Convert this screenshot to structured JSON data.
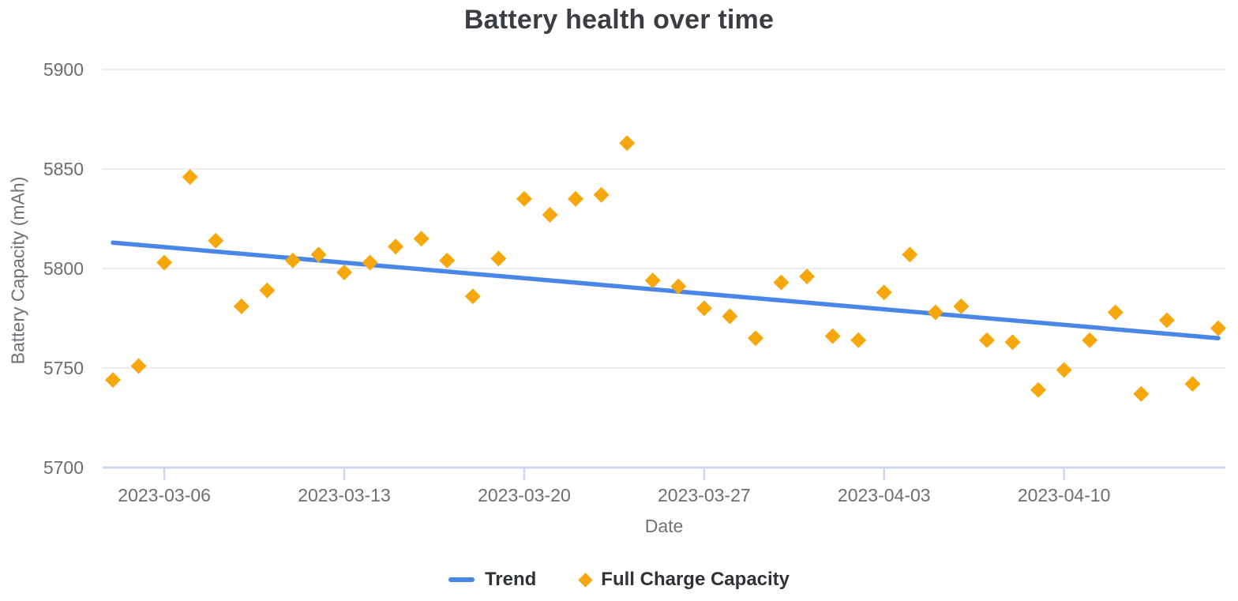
{
  "chart": {
    "title": "Battery health over time",
    "x_axis_title": "Date",
    "y_axis_title": "Battery Capacity (mAh)",
    "legend": [
      {
        "label": "Trend",
        "swatch": "line",
        "color": "#4A86E8"
      },
      {
        "label": "Full Charge Capacity",
        "swatch": "diamond",
        "color": "#F5A70C"
      }
    ]
  },
  "chart_data": {
    "type": "scatter",
    "title": "Battery health over time",
    "xlabel": "Date",
    "ylabel": "Battery Capacity (mAh)",
    "ylim": [
      5700,
      5900
    ],
    "y_ticks": [
      5900,
      5850,
      5800,
      5750,
      5700
    ],
    "x_ticks": [
      "2023-03-06",
      "2023-03-13",
      "2023-03-20",
      "2023-03-27",
      "2023-04-03",
      "2023-04-10"
    ],
    "grid": true,
    "legend_position": "bottom",
    "x": [
      "2023-03-04",
      "2023-03-05",
      "2023-03-06",
      "2023-03-07",
      "2023-03-08",
      "2023-03-09",
      "2023-03-10",
      "2023-03-11",
      "2023-03-12",
      "2023-03-13",
      "2023-03-14",
      "2023-03-15",
      "2023-03-16",
      "2023-03-17",
      "2023-03-18",
      "2023-03-19",
      "2023-03-20",
      "2023-03-21",
      "2023-03-22",
      "2023-03-23",
      "2023-03-24",
      "2023-03-25",
      "2023-03-26",
      "2023-03-27",
      "2023-03-28",
      "2023-03-29",
      "2023-03-30",
      "2023-03-31",
      "2023-04-01",
      "2023-04-02",
      "2023-04-03",
      "2023-04-04",
      "2023-04-05",
      "2023-04-06",
      "2023-04-07",
      "2023-04-08",
      "2023-04-09",
      "2023-04-10",
      "2023-04-11",
      "2023-04-12",
      "2023-04-13",
      "2023-04-14",
      "2023-04-15",
      "2023-04-16"
    ],
    "series": [
      {
        "name": "Full Charge Capacity",
        "type": "scatter",
        "marker": "diamond",
        "color": "#F5A70C",
        "values": [
          5744,
          5751,
          5803,
          5846,
          5814,
          5781,
          5789,
          5804,
          5807,
          5798,
          5803,
          5811,
          5815,
          5804,
          5786,
          5805,
          5835,
          5827,
          5835,
          5837,
          5863,
          5794,
          5791,
          5780,
          5776,
          5765,
          5793,
          5796,
          5766,
          5764,
          5788,
          5807,
          5778,
          5781,
          5764,
          5763,
          5739,
          5749,
          5764,
          5778,
          5737,
          5774,
          5742,
          5770
        ]
      },
      {
        "name": "Trend",
        "type": "line",
        "color": "#4A86E8",
        "endpoints": {
          "x_start": "2023-03-04",
          "y_start": 5813,
          "x_end": "2023-04-16",
          "y_end": 5765
        }
      }
    ],
    "style": {
      "gridline_color": "#e7e7e7",
      "axis_line_color": "#ccd6ec",
      "tick_label_color": "#6e6e6e",
      "axis_title_color": "#6e7277",
      "title_color": "#3a3d41",
      "background": "#ffffff"
    }
  }
}
